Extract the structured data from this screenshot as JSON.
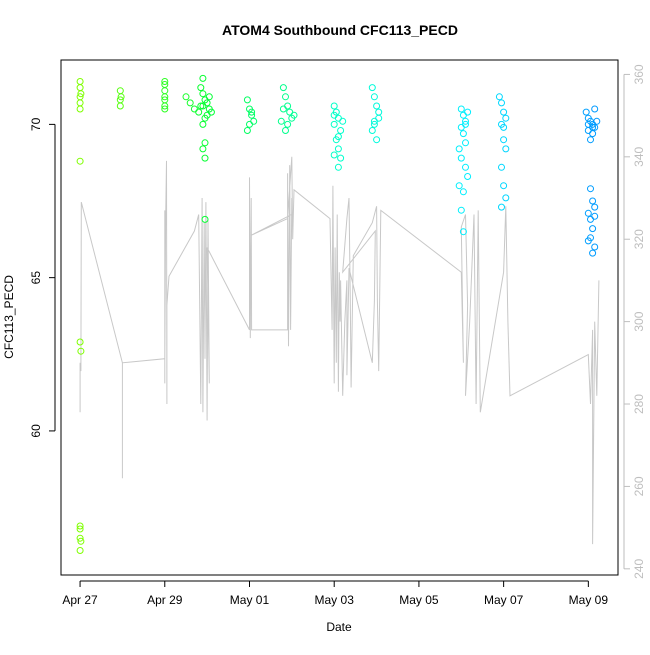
{
  "chart_data": {
    "type": "scatter",
    "title": "ATOM4 Southbound CFC113_PECD",
    "xlabel": "Date",
    "ylabel": "CFC113_PECD",
    "x_ticks": [
      "Apr 27",
      "Apr 29",
      "May 01",
      "May 03",
      "May 05",
      "May 07",
      "May 09"
    ],
    "x_range_days": [
      -0.45,
      12.7
    ],
    "y_ticks": [
      60,
      65,
      70
    ],
    "ylim": [
      55.3,
      72.1
    ],
    "y2_ticks": [
      240,
      260,
      280,
      300,
      320,
      340,
      360
    ],
    "y2lim": [
      238.5,
      363.5
    ],
    "colors": {
      "trace": "#c8c8c8",
      "axis": "#000000",
      "secondary_axis": "#bebebe",
      "point_palette": [
        "#7fff00",
        "#00ff33",
        "#00ffcc",
        "#00eeff",
        "#0099ff"
      ]
    },
    "series": [
      {
        "type": "scatter",
        "points": [
          [
            0.0,
            71.4
          ],
          [
            0.0,
            71.2
          ],
          [
            0.0,
            70.9
          ],
          [
            0.0,
            70.7
          ],
          [
            0.0,
            70.5
          ],
          [
            0.02,
            71.0
          ],
          [
            0.0,
            68.8
          ],
          [
            0.0,
            62.9
          ],
          [
            0.02,
            62.6
          ],
          [
            0.0,
            56.9
          ],
          [
            0.0,
            56.8
          ],
          [
            0.0,
            56.5
          ],
          [
            0.02,
            56.4
          ],
          [
            0.0,
            56.1
          ],
          [
            0.95,
            71.1
          ],
          [
            0.95,
            70.8
          ],
          [
            0.95,
            70.6
          ],
          [
            0.97,
            70.9
          ],
          [
            2.0,
            71.4
          ],
          [
            2.0,
            71.3
          ],
          [
            2.0,
            71.1
          ],
          [
            2.0,
            70.9
          ],
          [
            2.0,
            70.8
          ],
          [
            2.0,
            70.6
          ],
          [
            2.0,
            70.5
          ],
          [
            2.5,
            70.9
          ],
          [
            2.6,
            70.7
          ],
          [
            2.7,
            70.5
          ],
          [
            2.8,
            70.4
          ],
          [
            2.85,
            70.6
          ],
          [
            2.9,
            71.0
          ],
          [
            2.95,
            70.8
          ],
          [
            3.0,
            70.7
          ],
          [
            3.05,
            70.5
          ],
          [
            3.1,
            70.4
          ],
          [
            2.85,
            71.2
          ],
          [
            2.9,
            71.5
          ],
          [
            2.95,
            70.2
          ],
          [
            2.9,
            70.0
          ],
          [
            2.95,
            69.4
          ],
          [
            2.9,
            69.2
          ],
          [
            2.95,
            68.9
          ],
          [
            2.95,
            66.9
          ],
          [
            3.05,
            70.9
          ],
          [
            3.0,
            70.3
          ],
          [
            2.9,
            70.6
          ],
          [
            3.95,
            70.8
          ],
          [
            4.0,
            70.5
          ],
          [
            4.05,
            70.3
          ],
          [
            4.1,
            70.1
          ],
          [
            4.0,
            70.0
          ],
          [
            3.95,
            69.8
          ],
          [
            4.05,
            70.4
          ],
          [
            4.8,
            71.2
          ],
          [
            4.85,
            70.9
          ],
          [
            4.9,
            70.6
          ],
          [
            4.95,
            70.4
          ],
          [
            5.0,
            70.2
          ],
          [
            4.9,
            70.0
          ],
          [
            4.85,
            69.8
          ],
          [
            4.8,
            70.5
          ],
          [
            5.05,
            70.3
          ],
          [
            4.75,
            70.1
          ]
        ]
      },
      {
        "type": "scatter",
        "points": [
          [
            6.0,
            70.6
          ],
          [
            6.05,
            70.4
          ],
          [
            6.1,
            70.2
          ],
          [
            6.0,
            70.0
          ],
          [
            6.15,
            69.8
          ],
          [
            6.05,
            69.5
          ],
          [
            6.1,
            69.2
          ],
          [
            6.15,
            68.9
          ],
          [
            6.1,
            68.6
          ],
          [
            6.0,
            69.0
          ],
          [
            6.1,
            69.6
          ],
          [
            6.2,
            70.1
          ],
          [
            6.0,
            70.3
          ],
          [
            6.9,
            71.2
          ],
          [
            6.95,
            70.9
          ],
          [
            7.0,
            70.6
          ],
          [
            7.05,
            70.4
          ],
          [
            6.95,
            70.1
          ],
          [
            6.9,
            69.8
          ],
          [
            7.0,
            69.5
          ],
          [
            7.05,
            70.2
          ],
          [
            6.95,
            70.0
          ]
        ]
      },
      {
        "type": "scatter",
        "points": [
          [
            9.0,
            70.5
          ],
          [
            9.05,
            70.3
          ],
          [
            9.1,
            70.1
          ],
          [
            9.0,
            69.9
          ],
          [
            9.05,
            69.7
          ],
          [
            9.1,
            69.4
          ],
          [
            8.95,
            69.2
          ],
          [
            9.0,
            68.9
          ],
          [
            9.1,
            68.6
          ],
          [
            9.15,
            68.3
          ],
          [
            8.95,
            68.0
          ],
          [
            9.05,
            67.8
          ],
          [
            9.0,
            67.2
          ],
          [
            9.05,
            66.5
          ],
          [
            9.1,
            70.0
          ],
          [
            9.15,
            70.4
          ],
          [
            9.9,
            70.9
          ],
          [
            9.95,
            70.7
          ],
          [
            10.0,
            70.4
          ],
          [
            10.05,
            70.2
          ],
          [
            9.95,
            70.0
          ],
          [
            10.0,
            69.5
          ],
          [
            10.05,
            69.2
          ],
          [
            9.95,
            68.6
          ],
          [
            10.0,
            68.0
          ],
          [
            10.05,
            67.6
          ],
          [
            9.95,
            67.3
          ],
          [
            10.0,
            69.9
          ]
        ]
      },
      {
        "type": "scatter",
        "points": [
          [
            11.95,
            70.4
          ],
          [
            12.0,
            70.2
          ],
          [
            12.05,
            70.1
          ],
          [
            12.1,
            70.0
          ],
          [
            12.15,
            69.9
          ],
          [
            12.0,
            69.8
          ],
          [
            12.1,
            69.7
          ],
          [
            12.05,
            69.5
          ],
          [
            12.15,
            70.5
          ],
          [
            12.0,
            70.0
          ],
          [
            12.1,
            69.9
          ],
          [
            12.2,
            70.1
          ],
          [
            12.05,
            67.9
          ],
          [
            12.1,
            67.5
          ],
          [
            12.0,
            67.1
          ],
          [
            12.05,
            66.9
          ],
          [
            12.15,
            67.0
          ],
          [
            12.1,
            66.6
          ],
          [
            12.05,
            66.3
          ],
          [
            12.15,
            66.0
          ],
          [
            12.1,
            65.8
          ],
          [
            12.0,
            66.2
          ],
          [
            12.15,
            67.3
          ]
        ]
      },
      {
        "type": "line",
        "axis": "right",
        "points": [
          [
            0.0,
            290
          ],
          [
            0.0,
            278
          ],
          [
            0.0,
            290
          ],
          [
            0.02,
            288
          ],
          [
            0.03,
            329
          ],
          [
            1.0,
            290
          ],
          [
            1.0,
            262
          ],
          [
            1.0,
            290
          ],
          [
            2.0,
            291
          ],
          [
            2.0,
            285
          ],
          [
            2.0,
            290
          ],
          [
            2.0,
            327
          ],
          [
            2.0,
            290
          ],
          [
            2.02,
            324
          ],
          [
            2.04,
            339
          ],
          [
            2.05,
            280
          ],
          [
            2.05,
            304
          ],
          [
            2.1,
            311
          ],
          [
            2.7,
            322
          ],
          [
            2.8,
            326
          ],
          [
            2.85,
            280
          ],
          [
            2.88,
            330
          ],
          [
            2.9,
            278
          ],
          [
            2.93,
            324
          ],
          [
            2.95,
            291
          ],
          [
            2.97,
            329
          ],
          [
            3.0,
            276
          ],
          [
            3.02,
            325
          ],
          [
            3.05,
            285
          ],
          [
            3.0,
            318
          ],
          [
            4.0,
            298
          ],
          [
            4.0,
            335
          ],
          [
            4.02,
            296
          ],
          [
            4.04,
            330
          ],
          [
            4.05,
            298
          ],
          [
            4.9,
            298
          ],
          [
            4.9,
            336
          ],
          [
            4.92,
            294
          ],
          [
            4.95,
            338
          ],
          [
            4.97,
            298
          ],
          [
            5.0,
            330
          ],
          [
            5.0,
            326
          ],
          [
            4.05,
            321
          ],
          [
            4.9,
            325
          ],
          [
            5.0,
            340
          ],
          [
            5.02,
            320
          ],
          [
            5.05,
            332
          ],
          [
            5.9,
            325
          ],
          [
            5.95,
            298
          ],
          [
            5.97,
            333
          ],
          [
            6.0,
            285
          ],
          [
            6.02,
            318
          ],
          [
            6.05,
            290
          ],
          [
            6.07,
            326
          ],
          [
            6.1,
            283
          ],
          [
            6.12,
            312
          ],
          [
            6.14,
            300
          ],
          [
            6.15,
            310
          ],
          [
            6.2,
            282
          ],
          [
            6.25,
            300
          ],
          [
            6.3,
            310
          ],
          [
            6.3,
            287
          ],
          [
            6.35,
            313
          ],
          [
            6.9,
            290
          ],
          [
            6.95,
            305
          ],
          [
            6.97,
            322
          ],
          [
            6.2,
            312
          ],
          [
            6.3,
            325
          ],
          [
            6.35,
            330
          ],
          [
            6.38,
            305
          ],
          [
            6.4,
            284
          ],
          [
            6.45,
            316
          ],
          [
            6.9,
            324
          ],
          [
            7.0,
            328
          ],
          [
            7.02,
            305
          ],
          [
            7.05,
            288
          ],
          [
            7.1,
            327
          ],
          [
            9.0,
            312
          ],
          [
            9.05,
            290
          ],
          [
            9.0,
            323
          ],
          [
            9.1,
            326
          ],
          [
            9.15,
            304
          ],
          [
            9.1,
            282
          ],
          [
            9.2,
            300
          ],
          [
            9.3,
            326
          ],
          [
            9.35,
            280
          ],
          [
            9.4,
            327
          ],
          [
            9.45,
            278
          ],
          [
            10.0,
            312
          ],
          [
            10.05,
            328
          ],
          [
            10.1,
            300
          ],
          [
            10.15,
            282
          ],
          [
            12.0,
            292
          ],
          [
            12.05,
            280
          ],
          [
            12.1,
            298
          ],
          [
            12.1,
            246
          ],
          [
            12.15,
            300
          ],
          [
            12.2,
            282
          ],
          [
            12.25,
            310
          ]
        ]
      }
    ]
  }
}
